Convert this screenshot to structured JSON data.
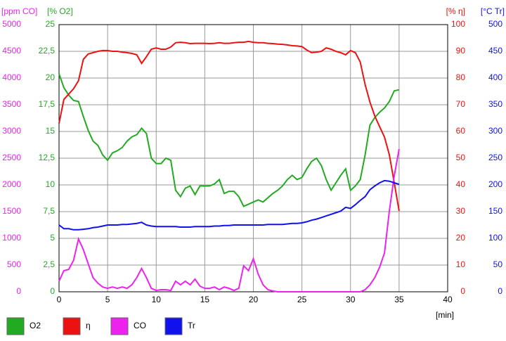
{
  "chart_data": {
    "type": "line",
    "x": [
      0,
      0.5,
      1,
      1.5,
      2,
      2.5,
      3,
      3.5,
      4,
      4.5,
      5,
      5.5,
      6,
      6.5,
      7,
      7.5,
      8,
      8.5,
      9,
      9.5,
      10,
      10.5,
      11,
      11.5,
      12,
      12.5,
      13,
      13.5,
      14,
      14.5,
      15,
      15.5,
      16,
      16.5,
      17,
      17.5,
      18,
      18.5,
      19,
      19.5,
      20,
      20.5,
      21,
      21.5,
      22,
      22.5,
      23,
      23.5,
      24,
      24.5,
      25,
      25.5,
      26,
      26.5,
      27,
      27.5,
      28,
      28.5,
      29,
      29.5,
      30,
      30.5,
      31,
      31.5,
      32,
      32.5,
      33,
      33.5,
      34,
      34.5,
      35
    ],
    "xlim": [
      0,
      40
    ],
    "xticks": [
      0,
      5,
      10,
      15,
      20,
      25,
      30,
      35,
      40
    ],
    "xlabel": "[min]",
    "grid": true,
    "series": [
      {
        "name": "O2",
        "color": "#22aa22",
        "axis_label": "[% O2]",
        "ylim": [
          0,
          25
        ],
        "yticks": [
          0,
          {
            "value": 2.5,
            "label": "2,5"
          },
          5,
          {
            "value": 7.5,
            "label": "7,5"
          },
          10,
          {
            "value": 12.5,
            "label": "12,5"
          },
          15,
          {
            "value": 17.5,
            "label": "17,5"
          },
          20,
          {
            "value": 22.5,
            "label": "22,5"
          },
          25
        ],
        "values": [
          20.4,
          19.1,
          18.4,
          17.9,
          17.8,
          16.4,
          15.1,
          14.1,
          13.7,
          12.8,
          12.3,
          13,
          13.2,
          13.5,
          14.1,
          14.5,
          14.7,
          15.3,
          14.8,
          12.5,
          12,
          12,
          12.5,
          12.3,
          9.5,
          8.9,
          9.7,
          9.9,
          9.1,
          9.9,
          9.9,
          9.9,
          10.1,
          10.5,
          9.2,
          9.4,
          9.4,
          8.9,
          8,
          8.2,
          8.4,
          8.6,
          8.4,
          8.8,
          9.2,
          9.5,
          9.9,
          10.5,
          10.9,
          10.5,
          10.7,
          11.5,
          12.2,
          12.5,
          11.8,
          10.5,
          9.5,
          10.2,
          10.9,
          11.5,
          9.5,
          9.9,
          10.5,
          12.8,
          15.6,
          16.3,
          16.8,
          17.2,
          17.8,
          18.8,
          18.9
        ]
      },
      {
        "name": "η",
        "color": "#ee1111",
        "axis_label": "[% η]",
        "ylim": [
          0,
          100
        ],
        "yticks": [
          0,
          10,
          20,
          30,
          40,
          50,
          60,
          70,
          80,
          90,
          100
        ],
        "values": [
          63,
          72,
          74,
          76,
          79,
          87,
          89,
          89.5,
          90,
          90.3,
          90.3,
          90,
          90,
          89.7,
          89.5,
          89.2,
          88.7,
          85.5,
          88,
          90.8,
          91.3,
          90.8,
          90.8,
          91.6,
          93.2,
          93.4,
          93.2,
          92.9,
          93,
          93,
          93,
          92.9,
          93,
          93.2,
          93,
          93,
          93.2,
          93.4,
          93.4,
          93.7,
          93.4,
          93.2,
          93.2,
          93,
          92.9,
          92.7,
          92.6,
          92.4,
          92.1,
          92,
          91.8,
          90.5,
          89.5,
          89.7,
          90,
          91.3,
          90.8,
          90,
          89.5,
          88.7,
          90.3,
          89.5,
          86,
          77.6,
          71,
          65.8,
          61.8,
          57.9,
          51.3,
          40.8,
          30.3
        ]
      },
      {
        "name": "CO",
        "color": "#ee22ee",
        "axis_label": "[ppm CO]",
        "ylim": [
          0,
          5000
        ],
        "yticks": [
          0,
          500,
          1000,
          1500,
          2000,
          2500,
          3000,
          3500,
          4000,
          4500,
          5000
        ],
        "values": [
          197,
          395,
          420,
          590,
          990,
          790,
          525,
          265,
          160,
          90,
          65,
          90,
          65,
          90,
          65,
          130,
          265,
          435,
          265,
          65,
          25,
          40,
          40,
          25,
          197,
          130,
          197,
          130,
          237,
          105,
          65,
          65,
          90,
          40,
          90,
          65,
          25,
          65,
          487,
          395,
          618,
          330,
          130,
          40,
          15,
          0,
          0,
          0,
          0,
          0,
          0,
          0,
          0,
          0,
          0,
          0,
          0,
          0,
          0,
          0,
          0,
          0,
          0,
          40,
          130,
          265,
          460,
          725,
          1510,
          2170,
          2670
        ]
      },
      {
        "name": "Tr",
        "color": "#1111ee",
        "axis_label": "[°C Tr]",
        "ylim": [
          0,
          500
        ],
        "yticks": [
          0,
          50,
          100,
          150,
          200,
          250,
          300,
          350,
          400,
          450,
          500
        ],
        "values": [
          125,
          118,
          118,
          116,
          116,
          117,
          118,
          120,
          121,
          123,
          125,
          125,
          125,
          126,
          126,
          127,
          128,
          130,
          125,
          123,
          122,
          122,
          122,
          122,
          122,
          121,
          121,
          121,
          122,
          122,
          122,
          122,
          123,
          123,
          124,
          124,
          125,
          125,
          125,
          125,
          125,
          125,
          125,
          126,
          126,
          126,
          126,
          127,
          128,
          128,
          129,
          131,
          134,
          136,
          139,
          142,
          145,
          148,
          151,
          158,
          156,
          163,
          171,
          178,
          191,
          198,
          204,
          208,
          207,
          204,
          201
        ]
      }
    ]
  }
}
